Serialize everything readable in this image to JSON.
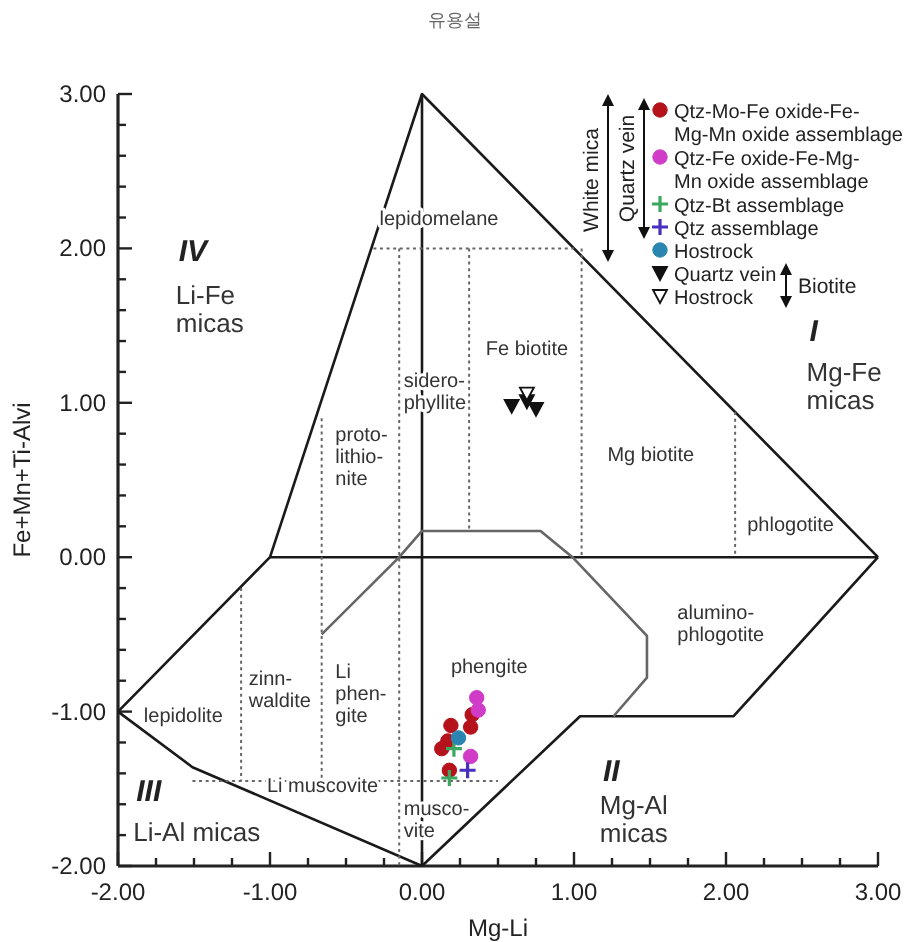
{
  "chart_data": {
    "type": "scatter",
    "title": "유용설",
    "xlabel": "Mg-Li",
    "ylabel": "Fe+Mn+Ti-Alvi",
    "xlim": [
      -2,
      3
    ],
    "ylim": [
      -2,
      3
    ],
    "xticks": [
      {
        "value": -2,
        "label": "-2.00"
      },
      {
        "value": -1.75,
        "label": null
      },
      {
        "value": -1.5,
        "label": null
      },
      {
        "value": -1.25,
        "label": null
      },
      {
        "value": -1,
        "label": "-1.00"
      },
      {
        "value": -0.75,
        "label": null
      },
      {
        "value": -0.5,
        "label": null
      },
      {
        "value": -0.25,
        "label": null
      },
      {
        "value": 0,
        "label": "0.00"
      },
      {
        "value": 0.25,
        "label": null
      },
      {
        "value": 0.5,
        "label": null
      },
      {
        "value": 0.75,
        "label": null
      },
      {
        "value": 1,
        "label": "1.00"
      },
      {
        "value": 1.25,
        "label": null
      },
      {
        "value": 1.5,
        "label": null
      },
      {
        "value": 1.75,
        "label": null
      },
      {
        "value": 2,
        "label": "2.00"
      },
      {
        "value": 2.25,
        "label": null
      },
      {
        "value": 2.5,
        "label": null
      },
      {
        "value": 2.75,
        "label": null
      },
      {
        "value": 3,
        "label": "3.00"
      }
    ],
    "yticks": [
      {
        "value": -2,
        "label": "-2.00"
      },
      {
        "value": -1.8,
        "label": null
      },
      {
        "value": -1.6,
        "label": null
      },
      {
        "value": -1.4,
        "label": null
      },
      {
        "value": -1.2,
        "label": null
      },
      {
        "value": -1,
        "label": "-1.00"
      },
      {
        "value": -0.8,
        "label": null
      },
      {
        "value": -0.6,
        "label": null
      },
      {
        "value": -0.4,
        "label": null
      },
      {
        "value": -0.2,
        "label": null
      },
      {
        "value": 0,
        "label": "0.00"
      },
      {
        "value": 0.2,
        "label": null
      },
      {
        "value": 0.4,
        "label": null
      },
      {
        "value": 0.6,
        "label": null
      },
      {
        "value": 0.8,
        "label": null
      },
      {
        "value": 1,
        "label": "1.00"
      },
      {
        "value": 1.2,
        "label": null
      },
      {
        "value": 1.4,
        "label": null
      },
      {
        "value": 1.6,
        "label": null
      },
      {
        "value": 1.8,
        "label": null
      },
      {
        "value": 2,
        "label": "2.00"
      },
      {
        "value": 2.2,
        "label": null
      },
      {
        "value": 2.4,
        "label": null
      },
      {
        "value": 2.6,
        "label": null
      },
      {
        "value": 2.8,
        "label": null
      },
      {
        "value": 3,
        "label": "3.00"
      }
    ],
    "legend": "top right",
    "series": [
      {
        "type": "line",
        "color": "#1a1a1a",
        "line_style": "solid",
        "x": [
          -2,
          -1,
          0,
          3
        ],
        "values": [
          -1,
          0,
          3,
          0
        ]
      },
      {
        "type": "line",
        "color": "#1a1a1a",
        "line_style": "solid",
        "x": [
          -2,
          -1.51,
          0
        ],
        "values": [
          -1,
          -1.36,
          -2
        ]
      },
      {
        "type": "line",
        "color": "#1a1a1a",
        "line_style": "solid",
        "x": [
          -1,
          3
        ],
        "values": [
          0,
          0
        ]
      },
      {
        "type": "line",
        "color": "#1a1a1a",
        "line_style": "solid",
        "x": [
          0,
          0
        ],
        "values": [
          -2,
          3
        ]
      },
      {
        "type": "line",
        "color": "#1a1a1a",
        "line_style": "solid",
        "x": [
          3,
          2.05,
          1.04,
          0
        ],
        "values": [
          0,
          -1.03,
          -1.03,
          -2
        ]
      },
      {
        "type": "line",
        "color": "#666666",
        "line_style": "solid",
        "x": [
          -0.66,
          -0.15,
          0,
          0.78,
          0.99,
          1.48,
          1.48,
          1.26
        ],
        "values": [
          -0.5,
          0,
          0.17,
          0.17,
          0,
          -0.51,
          -0.78,
          -1.03
        ]
      },
      {
        "type": "line",
        "color": "#666666",
        "line_style": "dotted",
        "x": [
          -1.51,
          0.5
        ],
        "values": [
          -1.45,
          -1.45
        ]
      },
      {
        "type": "line",
        "color": "#666666",
        "line_style": "dotted",
        "x": [
          -0.32,
          1.0
        ],
        "values": [
          2,
          2
        ]
      },
      {
        "type": "line",
        "color": "#666666",
        "line_style": "dotted",
        "x": [
          -0.15,
          -0.15
        ],
        "values": [
          2,
          -2
        ]
      },
      {
        "type": "line",
        "color": "#666666",
        "line_style": "dotted",
        "x": [
          -0.66,
          -0.66
        ],
        "values": [
          0.9,
          -1.45
        ]
      },
      {
        "type": "line",
        "color": "#666666",
        "line_style": "dotted",
        "x": [
          -1.19,
          -1.19
        ],
        "values": [
          -0.2,
          -1.45
        ]
      },
      {
        "type": "line",
        "color": "#666666",
        "line_style": "dotted",
        "x": [
          0.31,
          0.31
        ],
        "values": [
          2,
          0.17
        ]
      },
      {
        "type": "line",
        "color": "#666666",
        "line_style": "dotted",
        "x": [
          1.05,
          1.05
        ],
        "values": [
          2,
          0
        ]
      },
      {
        "type": "line",
        "color": "#666666",
        "line_style": "dotted",
        "x": [
          2.06,
          2.06
        ],
        "values": [
          0.94,
          0
        ]
      },
      {
        "name": "Qtz-Mo-Fe oxide-Fe-Mg-Mn oxide assemblage",
        "color": "#b5121b",
        "marker": "circle",
        "x": [
          0.19,
          0.17,
          0.13,
          0.32,
          0.33,
          0.18
        ],
        "values": [
          -1.09,
          -1.19,
          -1.24,
          -1.1,
          -1.02,
          -1.38
        ]
      },
      {
        "name": "Qtz-Fe oxide-Fe-Mg-Mn oxide assemblage",
        "color": "#d03cc8",
        "marker": "circle",
        "x": [
          0.36,
          0.37,
          0.32
        ],
        "values": [
          -0.91,
          -0.99,
          -1.29
        ]
      },
      {
        "name": "Qtz-Bt assemblage",
        "color": "#3aa860",
        "marker": "cross",
        "x": [
          0.21,
          0.18
        ],
        "values": [
          -1.24,
          -1.43
        ]
      },
      {
        "name": "Qtz assemblage",
        "color": "#4a2ec0",
        "marker": "cross",
        "x": [
          0.3
        ],
        "values": [
          -1.38
        ]
      },
      {
        "name": "Hostrock",
        "color": "#2a86b0",
        "marker": "circle",
        "x": [
          0.24
        ],
        "values": [
          -1.17
        ]
      },
      {
        "name": "Quartz vein",
        "color": "#111111",
        "marker": "triangle",
        "x": [
          0.59,
          0.69,
          0.75
        ],
        "values": [
          0.98,
          1.01,
          0.96
        ]
      },
      {
        "name": "Hostrock",
        "color": "#ffffff",
        "marker": "triangle",
        "x": [
          0.69
        ],
        "values": [
          1.06
        ]
      }
    ],
    "annotations": [
      "White mica",
      "Quartz vein",
      "Biotite",
      "IV",
      "I",
      "II",
      "III",
      "Li-Fe\nmicas",
      "Mg-Fe\nmicas",
      "Mg-Al\nmicas",
      "Li-Al micas",
      "lepidomelane",
      "Fe biotite",
      "sidero-\nphyllite",
      "proto-\nlithio-\nnite",
      "Mg biotite",
      "phlogotite",
      "alumino-\nphlogotite",
      "phengite",
      "lepidolite",
      "zinn-\nwaldite",
      "Li\nphen-\ngite",
      "Li muscovite",
      "musco-\nvite"
    ]
  }
}
